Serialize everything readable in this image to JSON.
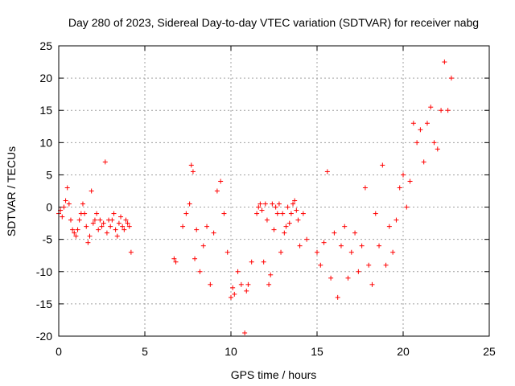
{
  "chart_data": {
    "type": "scatter",
    "title": "Day 280 of 2023, Sidereal Day-to-day VTEC variation (SDTVAR) for receiver nabg",
    "xlabel": "GPS time / hours",
    "ylabel": "SDTVAR / TECUs",
    "xlim": [
      0,
      25
    ],
    "ylim": [
      -20,
      25
    ],
    "xticks": [
      0,
      5,
      10,
      15,
      20,
      25
    ],
    "yticks": [
      -20,
      -15,
      -10,
      -5,
      0,
      5,
      10,
      15,
      20,
      25
    ],
    "grid": true,
    "marker": "+",
    "series": [
      {
        "name": "SDTVAR",
        "color": "#ff0000",
        "x": [
          0.0,
          0.1,
          0.2,
          0.3,
          0.4,
          0.5,
          0.6,
          0.7,
          0.8,
          0.9,
          1.0,
          1.1,
          1.2,
          1.3,
          1.4,
          1.5,
          1.6,
          1.7,
          1.8,
          1.9,
          2.0,
          2.1,
          2.2,
          2.3,
          2.4,
          2.5,
          2.6,
          2.7,
          2.8,
          2.9,
          3.0,
          3.1,
          3.2,
          3.3,
          3.4,
          3.5,
          3.6,
          3.7,
          3.8,
          3.9,
          4.0,
          4.1,
          4.2,
          6.7,
          6.8,
          7.2,
          7.4,
          7.6,
          7.7,
          7.8,
          7.9,
          8.0,
          8.2,
          8.4,
          8.6,
          8.8,
          9.0,
          9.2,
          9.4,
          9.6,
          9.8,
          10.0,
          10.1,
          10.2,
          10.4,
          10.6,
          10.8,
          10.9,
          11.0,
          11.2,
          11.5,
          11.6,
          11.7,
          11.8,
          11.9,
          12.0,
          12.1,
          12.2,
          12.3,
          12.4,
          12.5,
          12.6,
          12.7,
          12.8,
          12.9,
          13.0,
          13.1,
          13.2,
          13.3,
          13.4,
          13.5,
          13.6,
          13.7,
          13.8,
          13.9,
          14.0,
          14.2,
          14.4,
          15.0,
          15.2,
          15.4,
          15.6,
          15.8,
          16.0,
          16.2,
          16.4,
          16.6,
          16.8,
          17.0,
          17.2,
          17.4,
          17.6,
          17.8,
          18.0,
          18.2,
          18.4,
          18.6,
          18.8,
          19.0,
          19.2,
          19.4,
          19.6,
          19.8,
          20.0,
          20.2,
          20.4,
          20.6,
          20.8,
          21.0,
          21.2,
          21.4,
          21.6,
          21.8,
          22.0,
          22.2,
          22.4,
          22.6,
          22.8
        ],
        "y": [
          -1.0,
          -0.5,
          -1.5,
          0.0,
          1.0,
          3.0,
          0.5,
          -2.0,
          -3.5,
          -4.0,
          -4.5,
          -3.5,
          -2.0,
          -1.0,
          0.5,
          -1.0,
          -3.0,
          -5.5,
          -4.5,
          2.5,
          -2.5,
          -2.0,
          -1.0,
          -3.5,
          -2.0,
          -3.0,
          -2.5,
          7.0,
          -4.0,
          -2.0,
          -3.0,
          -2.0,
          -1.0,
          -3.5,
          -4.5,
          -2.5,
          -1.5,
          -3.0,
          -3.5,
          -2.0,
          -2.5,
          -3.0,
          -7.0,
          -8.0,
          -8.5,
          -3.0,
          -1.0,
          0.5,
          6.5,
          5.5,
          -8.0,
          -3.5,
          -10.0,
          -6.0,
          -3.0,
          -12.0,
          -4.0,
          2.5,
          4.0,
          -1.0,
          -7.0,
          -14.0,
          -12.5,
          -13.5,
          -10.0,
          -12.0,
          -19.5,
          -13.0,
          -12.0,
          -8.5,
          -1.0,
          0.0,
          0.5,
          -0.5,
          -8.5,
          0.5,
          -2.0,
          -12.0,
          -10.5,
          0.5,
          -3.5,
          0.0,
          -1.0,
          0.5,
          -7.0,
          -1.0,
          -4.0,
          -3.0,
          0.0,
          -2.5,
          -1.0,
          0.5,
          1.0,
          -0.5,
          -2.0,
          -6.0,
          -1.0,
          -5.0,
          -7.0,
          -9.0,
          -5.5,
          5.5,
          -11.0,
          -4.0,
          -14.0,
          -6.0,
          -3.0,
          -11.0,
          -7.0,
          -4.0,
          -10.0,
          -6.0,
          3.0,
          -9.0,
          -12.0,
          -1.0,
          -6.0,
          6.5,
          -9.0,
          -3.0,
          -7.0,
          -2.0,
          3.0,
          5.0,
          0.0,
          4.0,
          13.0,
          10.0,
          12.0,
          7.0,
          13.0,
          15.5,
          10.0,
          9.0,
          15.0,
          22.5,
          15.0,
          20.0
        ]
      }
    ]
  }
}
